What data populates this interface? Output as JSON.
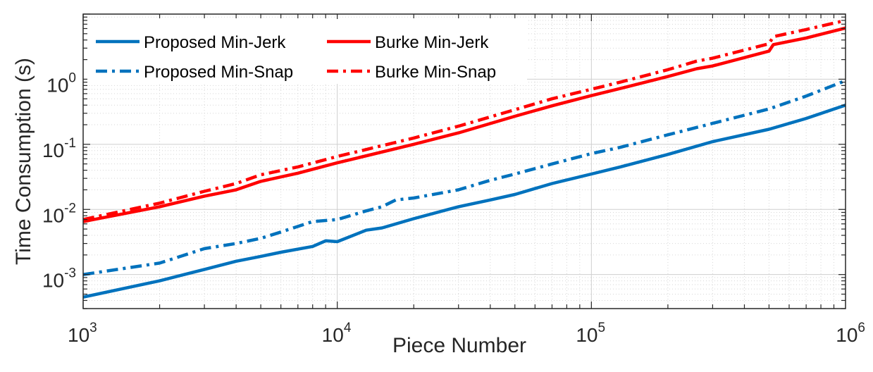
{
  "chart_data": {
    "type": "line",
    "scale": "log-log",
    "title": "",
    "xlabel": "Piece Number",
    "ylabel": "Time Consumption (s)",
    "xlim": [
      1000,
      1000000
    ],
    "ylim": [
      0.0003,
      10
    ],
    "grid": true,
    "legend_position": "top-left",
    "x_ticks": [
      {
        "value": 1000,
        "base": "10",
        "exp": "3"
      },
      {
        "value": 10000,
        "base": "10",
        "exp": "4"
      },
      {
        "value": 100000,
        "base": "10",
        "exp": "5"
      },
      {
        "value": 1000000,
        "base": "10",
        "exp": "6"
      }
    ],
    "y_ticks": [
      {
        "value": 0.001,
        "base": "10",
        "exp": "-3"
      },
      {
        "value": 0.01,
        "base": "10",
        "exp": "-2"
      },
      {
        "value": 0.1,
        "base": "10",
        "exp": "-1"
      },
      {
        "value": 1,
        "base": "10",
        "exp": "0"
      }
    ],
    "series": [
      {
        "name": "Proposed Min-Jerk",
        "color": "#0072BD",
        "style": "solid",
        "x": [
          1000,
          2000,
          3000,
          4000,
          5000,
          6000,
          8000,
          9000,
          10000,
          13000,
          15000,
          20000,
          30000,
          40000,
          50000,
          70000,
          100000,
          130000,
          200000,
          300000,
          500000,
          700000,
          1000000
        ],
        "y": [
          0.00045,
          0.0008,
          0.0012,
          0.0016,
          0.0019,
          0.0022,
          0.0027,
          0.0033,
          0.0032,
          0.0048,
          0.0052,
          0.0072,
          0.011,
          0.014,
          0.017,
          0.025,
          0.035,
          0.045,
          0.07,
          0.11,
          0.17,
          0.25,
          0.4
        ]
      },
      {
        "name": "Proposed Min-Snap",
        "color": "#0072BD",
        "style": "dashdot",
        "x": [
          1000,
          2000,
          3000,
          4000,
          5000,
          6000,
          8000,
          10000,
          13000,
          15000,
          17000,
          20000,
          30000,
          40000,
          50000,
          70000,
          100000,
          130000,
          200000,
          300000,
          500000,
          700000,
          1000000
        ],
        "y": [
          0.001,
          0.0015,
          0.0025,
          0.003,
          0.0036,
          0.0045,
          0.0065,
          0.007,
          0.0095,
          0.011,
          0.014,
          0.015,
          0.02,
          0.028,
          0.035,
          0.05,
          0.072,
          0.09,
          0.14,
          0.21,
          0.35,
          0.55,
          0.95
        ]
      },
      {
        "name": "Burke Min-Jerk",
        "color": "#FF0000",
        "style": "solid",
        "x": [
          1000,
          2000,
          3000,
          4000,
          5000,
          7000,
          10000,
          20000,
          30000,
          50000,
          70000,
          100000,
          130000,
          200000,
          260000,
          300000,
          500000,
          520000,
          700000,
          1000000
        ],
        "y": [
          0.0065,
          0.011,
          0.016,
          0.02,
          0.027,
          0.036,
          0.052,
          0.1,
          0.15,
          0.27,
          0.39,
          0.56,
          0.72,
          1.1,
          1.45,
          1.6,
          2.7,
          3.4,
          4.3,
          6.1
        ]
      },
      {
        "name": "Burke Min-Snap",
        "color": "#FF0000",
        "style": "dashdot",
        "x": [
          1000,
          2000,
          3000,
          4000,
          5000,
          7000,
          10000,
          20000,
          30000,
          50000,
          70000,
          100000,
          130000,
          200000,
          260000,
          300000,
          500000,
          520000,
          700000,
          1000000
        ],
        "y": [
          0.007,
          0.0125,
          0.019,
          0.025,
          0.034,
          0.045,
          0.065,
          0.125,
          0.19,
          0.34,
          0.5,
          0.7,
          0.9,
          1.4,
          1.9,
          2.1,
          3.5,
          4.5,
          5.8,
          8.0
        ]
      }
    ]
  }
}
